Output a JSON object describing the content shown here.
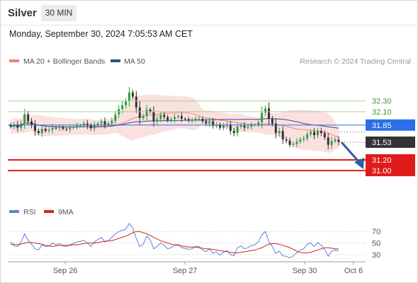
{
  "header": {
    "instrument": "Silver",
    "timeframe": "30 MIN",
    "timestamp": "Monday, September 30, 2024 7:05:53 AM CET"
  },
  "legend": {
    "ma20_label": "MA 20 + Bollinger Bands",
    "ma50_label": "MA 50",
    "copyright": "Research © 2024 Trading Central",
    "rsi_label": "RSI",
    "ma9_label": "9MA"
  },
  "colors": {
    "candle_up": "#2e9e3e",
    "candle_down": "#333333",
    "bollinger_fill": "#fbe0e0",
    "ma20": "#e98585",
    "ma50": "#2e4f8a",
    "resistance": "#2c6ee8",
    "support": "#e01b1b",
    "green_level": "#a6d38b",
    "last_price": "#333333",
    "arrow": "#2c5ea0",
    "rsi": "#5a82d6",
    "rsi_ma": "#d42020"
  },
  "chart_data": [
    {
      "type": "candlestick",
      "title": "Silver",
      "timeframe": "30 MIN",
      "x_ticks": [
        "Sep 26",
        "Sep 27",
        "Sep 30",
        "Oct 6"
      ],
      "ylim": [
        30.75,
        32.6
      ],
      "grid": false,
      "legend_position": "top-left",
      "indicators": [
        "MA 20 + Bollinger Bands",
        "MA 50"
      ],
      "last_price": 31.53,
      "levels": [
        {
          "value": 32.3,
          "label": "32.30",
          "type": "target",
          "style": "green-line"
        },
        {
          "value": 32.1,
          "label": "32.10",
          "type": "target",
          "style": "green-line"
        },
        {
          "value": 31.85,
          "label": "31.85",
          "type": "pivot",
          "style": "blue-tag"
        },
        {
          "value": 31.53,
          "label": "31.53",
          "type": "last",
          "style": "dark-tag"
        },
        {
          "value": 31.2,
          "label": "31.20",
          "type": "support",
          "style": "red-tag"
        },
        {
          "value": 31.0,
          "label": "31.00",
          "type": "support",
          "style": "red-tag"
        }
      ],
      "forecast_arrow": {
        "from": 31.53,
        "to": 31.0,
        "direction": "down"
      },
      "closes": [
        31.82,
        31.86,
        31.8,
        31.88,
        32.05,
        31.92,
        31.85,
        31.74,
        31.7,
        31.78,
        31.74,
        31.76,
        31.8,
        31.79,
        31.81,
        31.78,
        31.77,
        31.8,
        31.82,
        31.84,
        31.85,
        31.88,
        31.84,
        31.79,
        31.85,
        31.88,
        31.92,
        31.86,
        31.88,
        31.93,
        32.05,
        32.15,
        32.22,
        32.3,
        32.46,
        32.38,
        32.18,
        31.98,
        32.02,
        32.14,
        32.1,
        31.92,
        31.96,
        32.04,
        32.0,
        31.94,
        31.96,
        32.0,
        32.02,
        31.97,
        31.96,
        31.94,
        31.94,
        31.97,
        31.97,
        31.92,
        31.88,
        31.92,
        31.84,
        31.86,
        31.8,
        31.84,
        31.86,
        31.74,
        31.7,
        31.82,
        31.84,
        31.8,
        31.82,
        31.85,
        31.86,
        31.9,
        32.08,
        32.16,
        31.97,
        31.88,
        31.7,
        31.74,
        31.58,
        31.56,
        31.48,
        31.5,
        31.54,
        31.58,
        31.6,
        31.68,
        31.72,
        31.66,
        31.74,
        31.7,
        31.62,
        31.48,
        31.55,
        31.58,
        31.53
      ]
    },
    {
      "type": "line",
      "title": "RSI",
      "ylim": [
        20,
        85
      ],
      "y_ticks": [
        30,
        50,
        70
      ],
      "series": [
        {
          "name": "RSI",
          "values": [
            52,
            45,
            44,
            52,
            66,
            55,
            48,
            40,
            38,
            47,
            44,
            45,
            50,
            47,
            49,
            45,
            44,
            47,
            49,
            52,
            53,
            55,
            50,
            44,
            52,
            56,
            60,
            52,
            54,
            60,
            66,
            70,
            72,
            74,
            84,
            76,
            58,
            44,
            48,
            62,
            56,
            40,
            44,
            50,
            46,
            40,
            42,
            46,
            48,
            42,
            41,
            39,
            40,
            44,
            44,
            38,
            35,
            40,
            32,
            35,
            29,
            34,
            37,
            30,
            28,
            42,
            45,
            40,
            42,
            46,
            47,
            52,
            64,
            70,
            52,
            44,
            32,
            36,
            28,
            27,
            24,
            28,
            33,
            38,
            40,
            48,
            50,
            44,
            51,
            46,
            39,
            27,
            36,
            38,
            36
          ]
        },
        {
          "name": "9MA",
          "values": [
            48,
            48,
            47,
            48,
            50,
            51,
            51,
            50,
            49,
            48,
            46,
            45,
            44,
            45,
            46,
            46,
            46,
            46,
            47,
            47,
            48,
            49,
            50,
            50,
            50,
            51,
            52,
            53,
            54,
            54,
            56,
            58,
            60,
            62,
            65,
            68,
            70,
            70,
            68,
            66,
            63,
            60,
            57,
            54,
            52,
            50,
            48,
            47,
            46,
            45,
            44,
            43,
            43,
            43,
            42,
            41,
            40,
            40,
            39,
            38,
            37,
            36,
            35,
            34,
            33,
            33,
            34,
            35,
            36,
            37,
            38,
            40,
            42,
            45,
            48,
            49,
            49,
            48,
            46,
            44,
            42,
            39,
            36,
            34,
            33,
            33,
            34,
            36,
            38,
            40,
            42,
            42,
            41,
            40,
            40
          ]
        }
      ]
    }
  ]
}
